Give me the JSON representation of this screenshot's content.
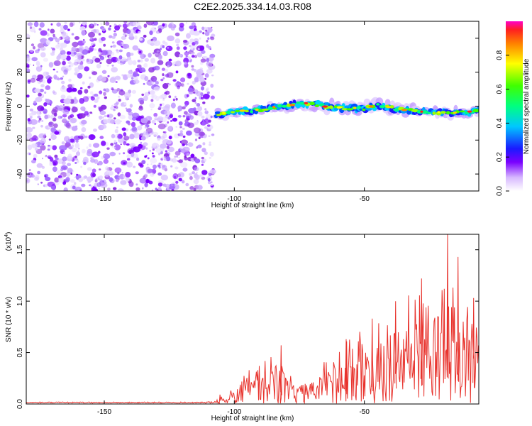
{
  "title": "C2E2.2025.334.14.03.R08",
  "spectrogram": {
    "type": "heatmap",
    "xlabel": "Height of straight line (km)",
    "ylabel": "Frequency (Hz)",
    "xlim": [
      -180,
      -6
    ],
    "ylim": [
      -50,
      50
    ],
    "xticks": [
      -150,
      -100,
      -50
    ],
    "yticks": [
      40,
      20,
      0,
      -20,
      -40
    ],
    "noise_region_x": [
      -180,
      -108
    ],
    "band": {
      "x": [
        -107,
        -100,
        -90,
        -80,
        -75,
        -70,
        -60,
        -50,
        -45,
        -40,
        -30,
        -20,
        -10,
        -6
      ],
      "center_freq": [
        -5,
        -3.5,
        -2,
        0,
        1.5,
        1,
        -1,
        -1.5,
        0.5,
        -1,
        -3,
        -4,
        -3.5,
        -2
      ],
      "half_width": [
        3,
        3,
        3,
        3.5,
        4,
        3.5,
        4,
        4,
        5,
        4,
        3.5,
        3,
        3,
        3
      ]
    }
  },
  "colorbar": {
    "label": "Normalized spectral amplitude",
    "ticks": [
      "0.0",
      "0.2",
      "0.4",
      "0.6",
      "0.8"
    ],
    "tick_values": [
      0.0,
      0.2,
      0.4,
      0.6,
      0.8
    ],
    "range": [
      0,
      1
    ]
  },
  "snr": {
    "type": "line",
    "xlabel": "Height of straight line (km)",
    "ylabel": "SNR (10 * v/v)",
    "scale_label": "(x10",
    "scale_exp": "4",
    "scale_close": ")",
    "xlim": [
      -180,
      -6
    ],
    "ylim": [
      0,
      1.65
    ],
    "xticks": [
      -150,
      -100,
      -50
    ],
    "yticks": [
      "0.0",
      "0.5",
      "1.0",
      "1.5"
    ],
    "ytick_values": [
      0.0,
      0.5,
      1.0,
      1.5
    ],
    "color": "#e8332d",
    "envelope": {
      "x": [
        -180,
        -110,
        -105,
        -100,
        -95,
        -90,
        -85,
        -82,
        -80,
        -75,
        -70,
        -65,
        -60,
        -55,
        -50,
        -45,
        -40,
        -35,
        -30,
        -25,
        -20,
        -15,
        -10,
        -6
      ],
      "max": [
        0.02,
        0.03,
        0.1,
        0.18,
        0.32,
        0.4,
        0.52,
        0.57,
        0.35,
        0.26,
        0.3,
        0.45,
        0.62,
        0.67,
        0.75,
        0.8,
        1.0,
        1.08,
        1.2,
        0.95,
        1.65,
        1.4,
        1.0,
        0.9
      ]
    },
    "peaks": [
      {
        "x": -82,
        "y": 0.57
      },
      {
        "x": -57,
        "y": 0.63
      },
      {
        "x": -47,
        "y": 0.83
      },
      {
        "x": -38,
        "y": 1.0
      },
      {
        "x": -28,
        "y": 1.22
      },
      {
        "x": -18,
        "y": 1.65
      },
      {
        "x": -14,
        "y": 1.43
      },
      {
        "x": -8,
        "y": 1.03
      }
    ]
  }
}
